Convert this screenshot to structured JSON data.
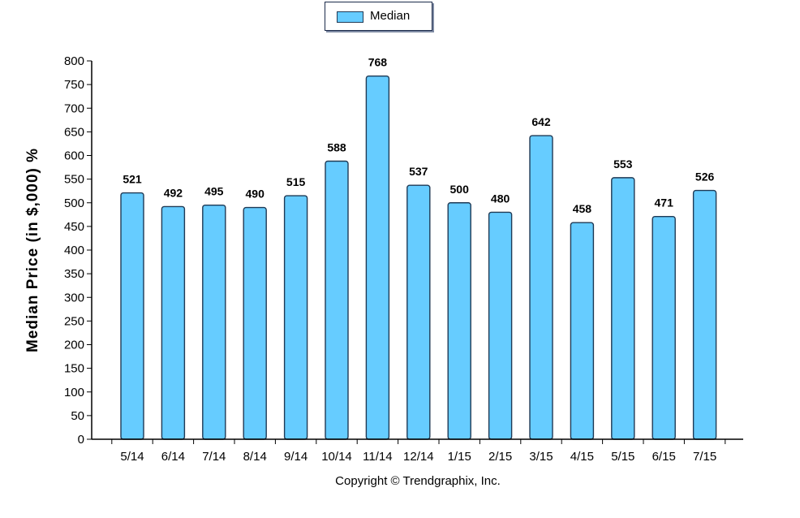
{
  "chart_data": {
    "type": "bar",
    "categories": [
      "5/14",
      "6/14",
      "7/14",
      "8/14",
      "9/14",
      "10/14",
      "11/14",
      "12/14",
      "1/15",
      "2/15",
      "3/15",
      "4/15",
      "5/15",
      "6/15",
      "7/15"
    ],
    "series": [
      {
        "name": "Median",
        "values": [
          521,
          492,
          495,
          490,
          515,
          588,
          768,
          537,
          500,
          480,
          642,
          458,
          553,
          471,
          526
        ]
      }
    ],
    "ylabel": "Median Price (in $,000) %",
    "xlabel": "",
    "ylim": [
      0,
      800
    ],
    "yticks": [
      0,
      50,
      100,
      150,
      200,
      250,
      300,
      350,
      400,
      450,
      500,
      550,
      600,
      650,
      700,
      750,
      800
    ],
    "grid": false,
    "legend_position": "top-center",
    "bar_color": "#66ccff",
    "bar_edge_color": "#1f3a55"
  },
  "legend": {
    "label": "Median"
  },
  "footer": {
    "copyright": "Copyright © Trendgraphix, Inc."
  }
}
